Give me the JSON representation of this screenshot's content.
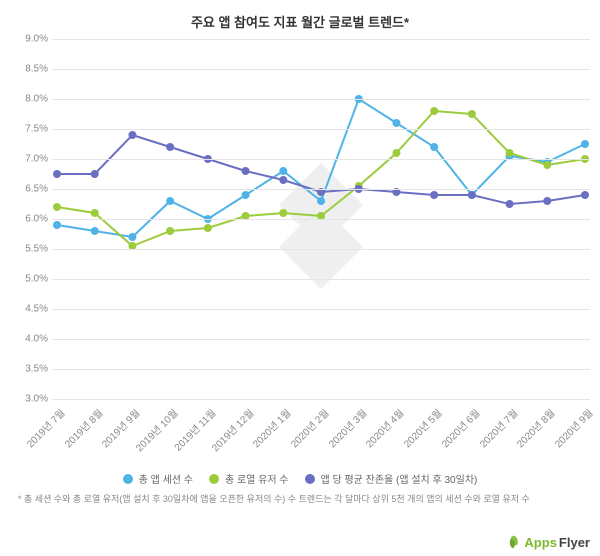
{
  "title": "주요 앱 참여도 지표 월간 글로벌 트렌드*",
  "footnote": "* 총 세션 수와 총 로열 유저(앱 설치 후 30일차에 앱을 오픈한 유저의 수) 수 트렌드는 각 달마다 상위 5천 개의 앱의 세션 수와 로열 유저 수",
  "chart": {
    "type": "line",
    "background_color": "#ffffff",
    "grid_color": "#e5e5e5",
    "ylim": [
      3.0,
      9.0
    ],
    "ytick_step": 0.5,
    "y_suffix": "%",
    "y_labels": [
      "3.0%",
      "3.5%",
      "4.0%",
      "4.5%",
      "5.0%",
      "5.5%",
      "6.0%",
      "6.5%",
      "7.0%",
      "7.5%",
      "8.0%",
      "8.5%",
      "9.0%"
    ],
    "x_labels": [
      "2019년 7월",
      "2019년 8월",
      "2019년 9월",
      "2019년 10월",
      "2019년 11월",
      "2019년 12월",
      "2020년 1월",
      "2020년 2월",
      "2020년 3월",
      "2020년 4월",
      "2020년 5월",
      "2020년 6월",
      "2020년 7월",
      "2020년 8월",
      "2020년 9월"
    ],
    "label_fontsize": 10,
    "label_color": "#888888",
    "marker": {
      "style": "circle",
      "radius": 4
    },
    "line_width": 2,
    "series": [
      {
        "name": "총 앱 세션 수",
        "color": "#4fb3e8",
        "values": [
          5.9,
          5.8,
          5.7,
          6.3,
          6.0,
          6.4,
          6.8,
          6.3,
          8.0,
          7.6,
          7.2,
          6.4,
          7.05,
          6.95,
          7.25
        ]
      },
      {
        "name": "총 로열 유저 수",
        "color": "#9ccc3c",
        "values": [
          6.2,
          6.1,
          5.55,
          5.8,
          5.85,
          6.05,
          6.1,
          6.05,
          6.55,
          7.1,
          7.8,
          7.75,
          7.1,
          6.9,
          7.0
        ]
      },
      {
        "name": "앱 당 평균 잔존율 (앱 설치 후 30일차)",
        "color": "#6a6fc1",
        "values": [
          6.75,
          6.75,
          7.4,
          7.2,
          7.0,
          6.8,
          6.65,
          6.45,
          6.5,
          6.45,
          6.4,
          6.4,
          6.25,
          6.3,
          6.4
        ]
      }
    ]
  },
  "legend_items": [
    {
      "label": "총 앱 세션 수",
      "color": "#4fb3e8"
    },
    {
      "label": "총 로열 유저 수",
      "color": "#9ccc3c"
    },
    {
      "label": "앱 당 평균 잔존율 (앱 설치 후 30일차)",
      "color": "#6a6fc1"
    }
  ],
  "logo": {
    "leaf_color": "#8bc34a",
    "text_a": "Apps",
    "text_b": "Flyer",
    "color_a": "#7db82f",
    "color_b": "#444444"
  }
}
